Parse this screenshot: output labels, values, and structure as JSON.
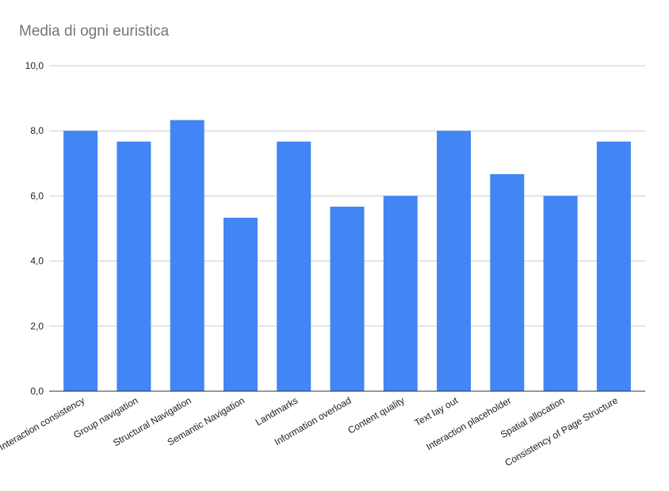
{
  "chart_data": {
    "type": "bar",
    "title": "Media di ogni euristica",
    "xlabel": "",
    "ylabel": "",
    "ylim": [
      0,
      10
    ],
    "yticks": [
      "0,0",
      "2,0",
      "4,0",
      "6,0",
      "8,0",
      "10,0"
    ],
    "grid": true,
    "legend": "none",
    "categories": [
      "Interaction consistency",
      "Group navigation",
      "Structural Navigation",
      "Semantic Navigation",
      "Landmarks",
      "Information overload",
      "Content quality",
      "Text lay out",
      "Interaction placeholder",
      "Spatial allocation",
      "Consistency of Page Structure"
    ],
    "values": [
      8.0,
      7.67,
      8.33,
      5.33,
      7.67,
      5.67,
      6.0,
      8.0,
      6.67,
      6.0,
      7.67
    ],
    "bar_color": "#4285f4",
    "grid_color": "#cccccc",
    "axis_color": "#333333",
    "label_color": "#222222",
    "title_color": "#757575"
  }
}
